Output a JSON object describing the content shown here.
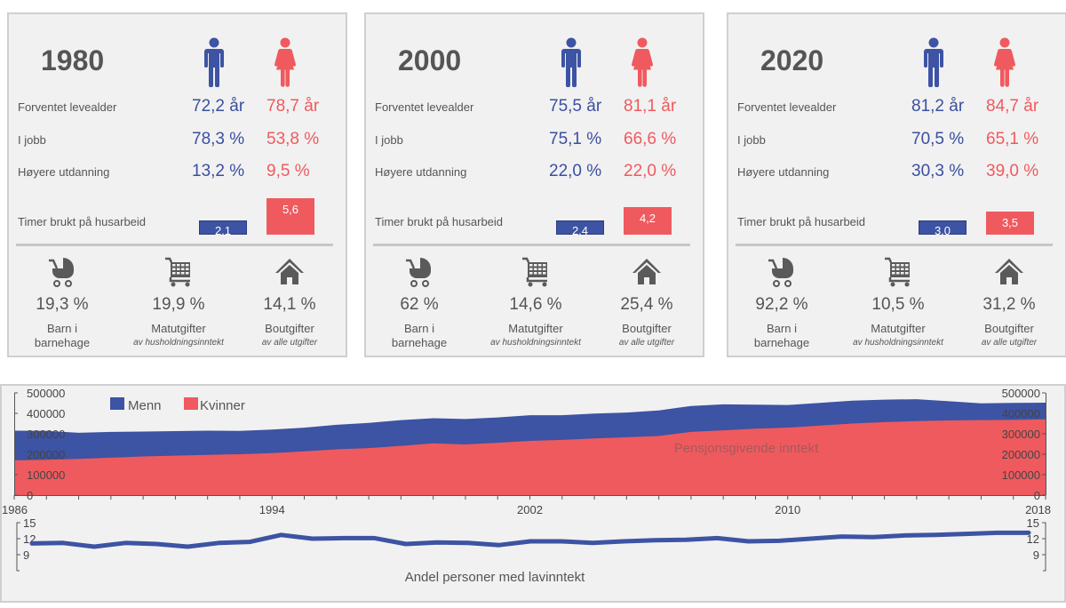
{
  "colors": {
    "men": "#3d53a3",
    "women": "#ef5a5e",
    "text": "#555555",
    "icon": "#5a5a5a"
  },
  "labels": {
    "life_expectancy": "Forventet levealder",
    "employed": "I jobb",
    "higher_education": "Høyere utdanning",
    "housework_hours": "Timer brukt på husarbeid",
    "kindergarten": "Barn i barnehage",
    "kindergarten_line1": "Barn i",
    "kindergarten_line2": "barnehage",
    "food": "Matutgifter",
    "food_sub": "av husholdningsinntekt",
    "housing": "Boutgifter",
    "housing_sub": "av alle utgifter"
  },
  "icons": {
    "men": "man-icon",
    "women": "woman-icon",
    "kindergarten": "stroller-icon",
    "food": "shopping-cart-icon",
    "housing": "house-icon"
  },
  "cards": [
    {
      "year": "1980",
      "life_expectancy": {
        "men": "72,2 år",
        "women": "78,7 år"
      },
      "employed": {
        "men": "78,3 %",
        "women": "53,8 %"
      },
      "higher_education": {
        "men": "13,2 %",
        "women": "9,5 %"
      },
      "housework": {
        "men": "2,1",
        "women": "5,6",
        "men_value": 2.1,
        "women_value": 5.6
      },
      "kindergarten": "19,3 %",
      "food": "19,9 %",
      "housing": "14,1 %"
    },
    {
      "year": "2000",
      "life_expectancy": {
        "men": "75,5 år",
        "women": "81,1 år"
      },
      "employed": {
        "men": "75,1 %",
        "women": "66,6 %"
      },
      "higher_education": {
        "men": "22,0 %",
        "women": "22,0 %"
      },
      "housework": {
        "men": "2,4",
        "women": "4,2",
        "men_value": 2.4,
        "women_value": 4.2
      },
      "kindergarten": "62 %",
      "food": "14,6 %",
      "housing": "25,4 %"
    },
    {
      "year": "2020",
      "life_expectancy": {
        "men": "81,2 år",
        "women": "84,7 år"
      },
      "employed": {
        "men": "70,5 %",
        "women": "65,1 %"
      },
      "higher_education": {
        "men": "30,3 %",
        "women": "39,0 %"
      },
      "housework": {
        "men": "3,0",
        "women": "3,5",
        "men_value": 3.0,
        "women_value": 3.5
      },
      "kindergarten": "92,2 %",
      "food": "10,5 %",
      "housing": "31,2 %"
    }
  ],
  "chart_data": [
    {
      "type": "area",
      "title": "Pensjonsgivende inntekt",
      "xlabel": "",
      "ylabel": "",
      "x": [
        1986,
        1987,
        1988,
        1989,
        1990,
        1991,
        1992,
        1993,
        1994,
        1995,
        1996,
        1997,
        1998,
        1999,
        2000,
        2001,
        2002,
        2003,
        2004,
        2005,
        2006,
        2007,
        2008,
        2009,
        2010,
        2011,
        2012,
        2013,
        2014,
        2015,
        2016,
        2017,
        2018
      ],
      "xticks": [
        1986,
        1994,
        2002,
        2010,
        2018
      ],
      "xlim": [
        1986,
        2018
      ],
      "ylim": [
        0,
        500000
      ],
      "yticks": [
        "0",
        "100000",
        "200000",
        "300000",
        "400000",
        "500000"
      ],
      "legend": "top-left",
      "grid": false,
      "series": [
        {
          "name": "Menn",
          "color": "#3d53a3",
          "values": [
            315000,
            314000,
            305000,
            309000,
            311000,
            313000,
            315000,
            314000,
            321000,
            330000,
            344000,
            353000,
            367000,
            376000,
            372000,
            380000,
            391000,
            391000,
            399000,
            404000,
            414000,
            436000,
            444000,
            442000,
            441000,
            451000,
            462000,
            467000,
            469000,
            459000,
            449000,
            451000,
            452000
          ]
        },
        {
          "name": "Kvinner",
          "color": "#ef5a5e",
          "values": [
            170000,
            173000,
            177000,
            183000,
            189000,
            193000,
            197000,
            200000,
            205000,
            214000,
            224000,
            230000,
            241000,
            253000,
            248000,
            256000,
            265000,
            270000,
            277000,
            283000,
            289000,
            309000,
            317000,
            325000,
            330000,
            340000,
            350000,
            357000,
            362000,
            365000,
            367000,
            368000,
            371000
          ]
        }
      ]
    },
    {
      "type": "line",
      "title": "Andel personer med lavinntekt",
      "x": [
        1986,
        1987,
        1988,
        1989,
        1990,
        1991,
        1992,
        1993,
        1994,
        1995,
        1996,
        1997,
        1998,
        1999,
        2000,
        2001,
        2002,
        2003,
        2004,
        2005,
        2006,
        2007,
        2008,
        2009,
        2010,
        2011,
        2012,
        2013,
        2014,
        2015,
        2016,
        2017,
        2018
      ],
      "xlim": [
        1986,
        2018
      ],
      "ylim": [
        6,
        15
      ],
      "yticks": [
        "9",
        "12",
        "15"
      ],
      "series": [
        {
          "name": "Andel personer med lavinntekt",
          "color": "#3d53a3",
          "values": [
            11.1,
            11.2,
            10.5,
            11.2,
            11.0,
            10.5,
            11.2,
            11.4,
            12.7,
            12.0,
            12.1,
            12.1,
            11.0,
            11.3,
            11.2,
            10.8,
            11.5,
            11.5,
            11.2,
            11.5,
            11.7,
            11.8,
            12.1,
            11.5,
            11.6,
            12.0,
            12.4,
            12.3,
            12.6,
            12.7,
            12.9,
            13.1,
            13.1
          ]
        }
      ]
    }
  ]
}
